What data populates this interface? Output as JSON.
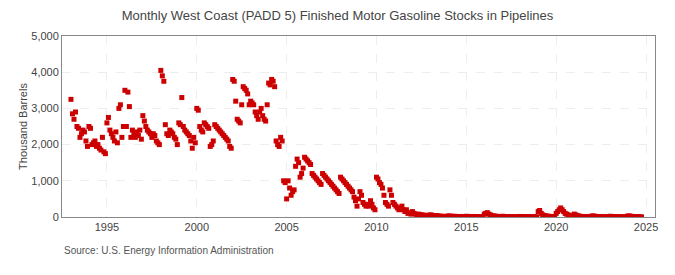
{
  "chart_data": {
    "type": "scatter",
    "title": "Monthly West Coast (PADD 5) Finished Motor Gasoline Stocks in Pipelines",
    "ylabel": "Thousand Barrels",
    "annotations": [
      {
        "text": "Source: U.S. Energy Information Administration"
      }
    ],
    "color": "#cc0000",
    "marker": "square",
    "grid": true,
    "xlim": [
      1992.5,
      2025.5
    ],
    "ylim": [
      0,
      5000
    ],
    "xticks": [
      1995,
      2000,
      2005,
      2010,
      2015,
      2020,
      2025
    ],
    "yticks": [
      0,
      {
        "value": 1000,
        "label": "1,000"
      },
      {
        "value": 2000,
        "label": "2,000"
      },
      {
        "value": 3000,
        "label": "3,000"
      },
      {
        "value": 4000,
        "label": "4,000"
      },
      {
        "value": 5000,
        "label": "5,000"
      }
    ],
    "x": [
      1993.0,
      1993.083,
      1993.167,
      1993.25,
      1993.333,
      1993.417,
      1993.5,
      1993.583,
      1993.667,
      1993.75,
      1993.833,
      1993.917,
      1994.0,
      1994.083,
      1994.167,
      1994.25,
      1994.333,
      1994.417,
      1994.5,
      1994.583,
      1994.667,
      1994.75,
      1994.833,
      1994.917,
      1995.0,
      1995.083,
      1995.167,
      1995.25,
      1995.333,
      1995.417,
      1995.5,
      1995.583,
      1995.667,
      1995.75,
      1995.833,
      1995.917,
      1996.0,
      1996.083,
      1996.167,
      1996.25,
      1996.333,
      1996.417,
      1996.5,
      1996.583,
      1996.667,
      1996.75,
      1996.833,
      1996.917,
      1997.0,
      1997.083,
      1997.167,
      1997.25,
      1997.333,
      1997.417,
      1997.5,
      1997.583,
      1997.667,
      1997.75,
      1997.833,
      1997.917,
      1998.0,
      1998.083,
      1998.167,
      1998.25,
      1998.333,
      1998.417,
      1998.5,
      1998.583,
      1998.667,
      1998.75,
      1998.833,
      1998.917,
      1999.0,
      1999.083,
      1999.167,
      1999.25,
      1999.333,
      1999.417,
      1999.5,
      1999.583,
      1999.667,
      1999.75,
      1999.833,
      1999.917,
      2000.0,
      2000.083,
      2000.167,
      2000.25,
      2000.333,
      2000.417,
      2000.5,
      2000.583,
      2000.667,
      2000.75,
      2000.833,
      2000.917,
      2001.0,
      2001.083,
      2001.167,
      2001.25,
      2001.333,
      2001.417,
      2001.5,
      2001.583,
      2001.667,
      2001.75,
      2001.833,
      2001.917,
      2002.0,
      2002.083,
      2002.167,
      2002.25,
      2002.333,
      2002.417,
      2002.5,
      2002.583,
      2002.667,
      2002.75,
      2002.833,
      2002.917,
      2003.0,
      2003.083,
      2003.167,
      2003.25,
      2003.333,
      2003.417,
      2003.5,
      2003.583,
      2003.667,
      2003.75,
      2003.833,
      2003.917,
      2004.0,
      2004.083,
      2004.167,
      2004.25,
      2004.333,
      2004.417,
      2004.5,
      2004.583,
      2004.667,
      2004.75,
      2004.833,
      2004.917,
      2005.0,
      2005.083,
      2005.167,
      2005.25,
      2005.333,
      2005.417,
      2005.5,
      2005.583,
      2005.667,
      2005.75,
      2005.833,
      2005.917,
      2006.0,
      2006.083,
      2006.167,
      2006.25,
      2006.333,
      2006.417,
      2006.5,
      2006.583,
      2006.667,
      2006.75,
      2006.833,
      2006.917,
      2007.0,
      2007.083,
      2007.167,
      2007.25,
      2007.333,
      2007.417,
      2007.5,
      2007.583,
      2007.667,
      2007.75,
      2007.833,
      2007.917,
      2008.0,
      2008.083,
      2008.167,
      2008.25,
      2008.333,
      2008.417,
      2008.5,
      2008.583,
      2008.667,
      2008.75,
      2008.833,
      2008.917,
      2009.0,
      2009.083,
      2009.167,
      2009.25,
      2009.333,
      2009.417,
      2009.5,
      2009.583,
      2009.667,
      2009.75,
      2009.833,
      2009.917,
      2010.0,
      2010.083,
      2010.167,
      2010.25,
      2010.333,
      2010.417,
      2010.5,
      2010.583,
      2010.667,
      2010.75,
      2010.833,
      2010.917,
      2011.0,
      2011.083,
      2011.167,
      2011.25,
      2011.333,
      2011.417,
      2011.5,
      2011.583,
      2011.667,
      2011.75,
      2011.833,
      2011.917,
      2012.0,
      2012.083,
      2012.167,
      2012.25,
      2012.333,
      2012.417,
      2012.5,
      2012.583,
      2012.667,
      2012.75,
      2012.833,
      2012.917,
      2013.0,
      2013.083,
      2013.167,
      2013.25,
      2013.333,
      2013.417,
      2013.5,
      2013.583,
      2013.667,
      2013.75,
      2013.833,
      2013.917,
      2014.0,
      2014.083,
      2014.167,
      2014.25,
      2014.333,
      2014.417,
      2014.5,
      2014.583,
      2014.667,
      2014.75,
      2014.833,
      2014.917,
      2015.0,
      2015.083,
      2015.167,
      2015.25,
      2015.333,
      2015.417,
      2015.5,
      2015.583,
      2015.667,
      2015.75,
      2015.833,
      2015.917,
      2016.0,
      2016.083,
      2016.167,
      2016.25,
      2016.333,
      2016.417,
      2016.5,
      2016.583,
      2016.667,
      2016.75,
      2016.833,
      2016.917,
      2017.0,
      2017.083,
      2017.167,
      2017.25,
      2017.333,
      2017.417,
      2017.5,
      2017.583,
      2017.667,
      2017.75,
      2017.833,
      2017.917,
      2018.0,
      2018.083,
      2018.167,
      2018.25,
      2018.333,
      2018.417,
      2018.5,
      2018.583,
      2018.667,
      2018.75,
      2018.833,
      2018.917,
      2019.0,
      2019.083,
      2019.167,
      2019.25,
      2019.333,
      2019.417,
      2019.5,
      2019.583,
      2019.667,
      2019.75,
      2019.833,
      2019.917,
      2020.0,
      2020.083,
      2020.167,
      2020.25,
      2020.333,
      2020.417,
      2020.5,
      2020.583,
      2020.667,
      2020.75,
      2020.833,
      2020.917,
      2021.0,
      2021.083,
      2021.167,
      2021.25,
      2021.333,
      2021.417,
      2021.5,
      2021.583,
      2021.667,
      2021.75,
      2021.833,
      2021.917,
      2022.0,
      2022.083,
      2022.167,
      2022.25,
      2022.333,
      2022.417,
      2022.5,
      2022.583,
      2022.667,
      2022.75,
      2022.833,
      2022.917,
      2023.0,
      2023.083,
      2023.167,
      2023.25,
      2023.333,
      2023.417,
      2023.5,
      2023.583,
      2023.667,
      2023.75,
      2023.833,
      2023.917,
      2024.0,
      2024.083,
      2024.167,
      2024.25,
      2024.333,
      2024.417,
      2024.5,
      2024.583,
      2024.667,
      2024.75
    ],
    "values": [
      3250,
      2850,
      2700,
      2900,
      2500,
      2450,
      2200,
      2300,
      2400,
      2350,
      2100,
      1950,
      2500,
      2450,
      2000,
      2050,
      2100,
      1950,
      2000,
      1900,
      1850,
      2200,
      1800,
      1750,
      2600,
      2750,
      2400,
      2300,
      2200,
      2100,
      2350,
      2050,
      3000,
      3100,
      2200,
      2500,
      3500,
      2500,
      3450,
      3050,
      2200,
      2400,
      2300,
      2200,
      2350,
      2250,
      2400,
      2150,
      2800,
      2650,
      2500,
      2400,
      2350,
      2300,
      2200,
      2300,
      2250,
      2100,
      2050,
      2000,
      4050,
      3900,
      3750,
      2550,
      2300,
      2250,
      2400,
      2350,
      2300,
      2200,
      2150,
      2000,
      2600,
      2550,
      3300,
      2500,
      2400,
      2350,
      2300,
      2250,
      2100,
      1900,
      2200,
      2050,
      3000,
      2950,
      2500,
      2400,
      2350,
      2600,
      2550,
      2500,
      2450,
      1950,
      2000,
      2100,
      2550,
      2500,
      2450,
      2400,
      2350,
      2300,
      2250,
      2200,
      2150,
      2100,
      1950,
      1900,
      3800,
      3750,
      3200,
      2700,
      2650,
      2600,
      3100,
      3600,
      3550,
      3500,
      3400,
      3100,
      3200,
      3150,
      3100,
      2900,
      2800,
      2700,
      2900,
      3000,
      2800,
      2700,
      2650,
      3100,
      3700,
      3650,
      3800,
      3750,
      3600,
      2100,
      2000,
      1950,
      2200,
      2100,
      1000,
      950,
      500,
      1000,
      800,
      600,
      700,
      750,
      1400,
      1600,
      1500,
      1100,
      1200,
      1350,
      1650,
      1600,
      1550,
      1500,
      1450,
      1200,
      1150,
      1100,
      1050,
      1000,
      950,
      900,
      1200,
      1150,
      1100,
      1050,
      1000,
      950,
      900,
      850,
      800,
      750,
      700,
      650,
      1100,
      1050,
      1000,
      950,
      900,
      850,
      800,
      750,
      700,
      550,
      450,
      300,
      500,
      700,
      600,
      400,
      350,
      300,
      350,
      300,
      450,
      350,
      250,
      200,
      1100,
      1050,
      950,
      900,
      800,
      600,
      400,
      350,
      300,
      750,
      600,
      400,
      350,
      300,
      250,
      200,
      250,
      300,
      200,
      150,
      200,
      100,
      120,
      80,
      150,
      100,
      80,
      60,
      80,
      70,
      60,
      50,
      40,
      50,
      30,
      25,
      60,
      50,
      40,
      30,
      40,
      30,
      25,
      20,
      15,
      20,
      10,
      8,
      30,
      25,
      20,
      15,
      20,
      15,
      10,
      12,
      15,
      10,
      8,
      6,
      20,
      15,
      12,
      10,
      15,
      12,
      10,
      8,
      6,
      8,
      5,
      4,
      80,
      100,
      120,
      80,
      60,
      40,
      30,
      25,
      20,
      15,
      10,
      8,
      20,
      15,
      10,
      8,
      6,
      8,
      6,
      5,
      4,
      5,
      4,
      3,
      15,
      12,
      10,
      8,
      6,
      8,
      6,
      5,
      4,
      5,
      4,
      3,
      150,
      180,
      100,
      60,
      40,
      30,
      25,
      20,
      15,
      10,
      8,
      6,
      100,
      150,
      200,
      250,
      200,
      150,
      100,
      80,
      60,
      40,
      20,
      15,
      80,
      60,
      40,
      30,
      20,
      15,
      10,
      8,
      6,
      5,
      4,
      3,
      30,
      25,
      20,
      15,
      10,
      8,
      6,
      5,
      4,
      3,
      3,
      2,
      20,
      15,
      12,
      10,
      8,
      6,
      5,
      4,
      3,
      3,
      2,
      2,
      30,
      25,
      20,
      15,
      10,
      8,
      6,
      5,
      4,
      3
    ]
  }
}
